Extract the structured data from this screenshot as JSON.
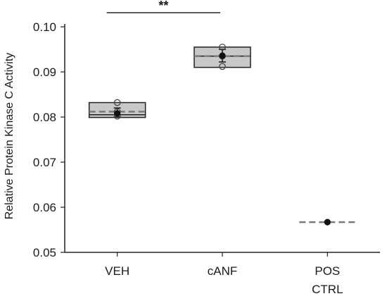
{
  "chart_data": {
    "type": "box",
    "ylabel": "Relative Protein Kinase C Activity",
    "ylim": [
      0.05,
      0.1
    ],
    "yticks": [
      0.05,
      0.06,
      0.07,
      0.08,
      0.09,
      0.1
    ],
    "ytick_labels": [
      "0.05",
      "0.06",
      "0.07",
      "0.08",
      "0.09",
      "0.10"
    ],
    "categories": [
      {
        "lines": [
          "VEH"
        ]
      },
      {
        "lines": [
          "cANF"
        ]
      },
      {
        "lines": [
          "POS",
          "CTRL"
        ]
      }
    ],
    "groups": [
      {
        "q1": 0.0799,
        "median": 0.0805,
        "q3": 0.0832,
        "mean": 0.0812,
        "mean_marker": 0.0808,
        "err_low": 0.08,
        "err_high": 0.082,
        "points": [
          0.0802,
          0.0812,
          0.0832
        ]
      },
      {
        "q1": 0.091,
        "median": 0.0935,
        "q3": 0.0955,
        "mean": 0.0935,
        "mean_marker": 0.0936,
        "err_low": 0.0922,
        "err_high": 0.095,
        "points": [
          0.0912,
          0.0935,
          0.0955
        ]
      },
      {
        "q1": 0.0567,
        "median": 0.0567,
        "q3": 0.0567,
        "mean": 0.0567,
        "mean_marker": 0.0567,
        "err_low": 0.0567,
        "err_high": 0.0567,
        "points": []
      }
    ],
    "significance": {
      "from": 0,
      "to": 1,
      "label": "**"
    },
    "colors": {
      "box_fill": "#c8c8c8",
      "box_stroke": "#222222",
      "mean_line": "#7a7a7a",
      "marker": "#111111"
    }
  }
}
